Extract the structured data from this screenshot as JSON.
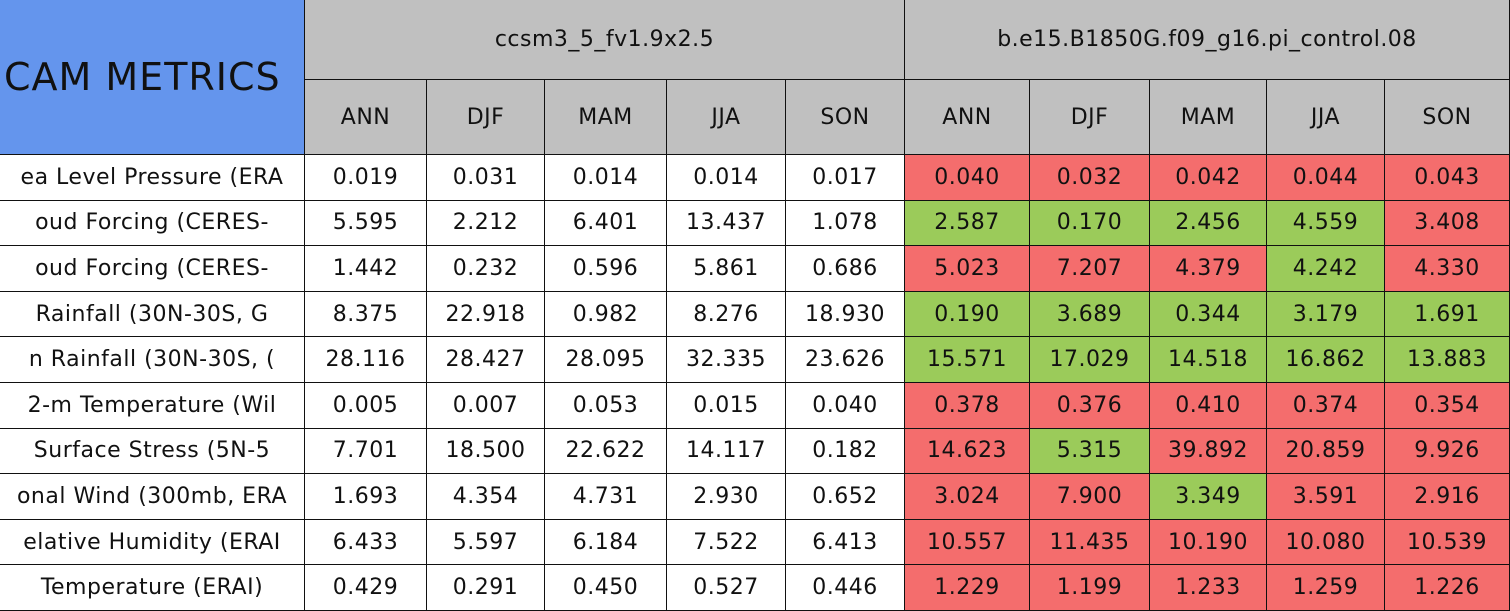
{
  "corner_title": "CAM METRICS",
  "groups": [
    "ccsm3_5_fv1.9x2.5",
    "b.e15.B1850G.f09_g16.pi_control.08"
  ],
  "seasons": [
    "ANN",
    "DJF",
    "MAM",
    "JJA",
    "SON"
  ],
  "rows": [
    {
      "label": "ea Level Pressure (ERA",
      "values": [
        "0.019",
        "0.031",
        "0.014",
        "0.014",
        "0.017",
        "0.040",
        "0.032",
        "0.042",
        "0.044",
        "0.043"
      ],
      "colors": [
        "#ffffff",
        "#ffffff",
        "#ffffff",
        "#ffffff",
        "#ffffff",
        "#f46d6d",
        "#f46d6d",
        "#f46d6d",
        "#f46d6d",
        "#f46d6d"
      ]
    },
    {
      "label": "oud Forcing (CERES-",
      "values": [
        "5.595",
        "2.212",
        "6.401",
        "13.437",
        "1.078",
        "2.587",
        "0.170",
        "2.456",
        "4.559",
        "3.408"
      ],
      "colors": [
        "#ffffff",
        "#ffffff",
        "#ffffff",
        "#ffffff",
        "#ffffff",
        "#9bcb5a",
        "#9bcb5a",
        "#9bcb5a",
        "#9bcb5a",
        "#f46d6d"
      ]
    },
    {
      "label": "oud Forcing (CERES-",
      "values": [
        "1.442",
        "0.232",
        "0.596",
        "5.861",
        "0.686",
        "5.023",
        "7.207",
        "4.379",
        "4.242",
        "4.330"
      ],
      "colors": [
        "#ffffff",
        "#ffffff",
        "#ffffff",
        "#ffffff",
        "#ffffff",
        "#f46d6d",
        "#f46d6d",
        "#f46d6d",
        "#9bcb5a",
        "#f46d6d"
      ]
    },
    {
      "label": "Rainfall (30N-30S, G",
      "values": [
        "8.375",
        "22.918",
        "0.982",
        "8.276",
        "18.930",
        "0.190",
        "3.689",
        "0.344",
        "3.179",
        "1.691"
      ],
      "colors": [
        "#ffffff",
        "#ffffff",
        "#ffffff",
        "#ffffff",
        "#ffffff",
        "#9bcb5a",
        "#9bcb5a",
        "#9bcb5a",
        "#9bcb5a",
        "#9bcb5a"
      ]
    },
    {
      "label": "n Rainfall (30N-30S, (",
      "values": [
        "28.116",
        "28.427",
        "28.095",
        "32.335",
        "23.626",
        "15.571",
        "17.029",
        "14.518",
        "16.862",
        "13.883"
      ],
      "colors": [
        "#ffffff",
        "#ffffff",
        "#ffffff",
        "#ffffff",
        "#ffffff",
        "#9bcb5a",
        "#9bcb5a",
        "#9bcb5a",
        "#9bcb5a",
        "#9bcb5a"
      ]
    },
    {
      "label": "2-m Temperature (Wil",
      "values": [
        "0.005",
        "0.007",
        "0.053",
        "0.015",
        "0.040",
        "0.378",
        "0.376",
        "0.410",
        "0.374",
        "0.354"
      ],
      "colors": [
        "#ffffff",
        "#ffffff",
        "#ffffff",
        "#ffffff",
        "#ffffff",
        "#f46d6d",
        "#f46d6d",
        "#f46d6d",
        "#f46d6d",
        "#f46d6d"
      ]
    },
    {
      "label": "Surface Stress (5N-5",
      "values": [
        "7.701",
        "18.500",
        "22.622",
        "14.117",
        "0.182",
        "14.623",
        "5.315",
        "39.892",
        "20.859",
        "9.926"
      ],
      "colors": [
        "#ffffff",
        "#ffffff",
        "#ffffff",
        "#ffffff",
        "#ffffff",
        "#f46d6d",
        "#9bcb5a",
        "#f46d6d",
        "#f46d6d",
        "#f46d6d"
      ]
    },
    {
      "label": "onal Wind (300mb, ERA",
      "values": [
        "1.693",
        "4.354",
        "4.731",
        "2.930",
        "0.652",
        "3.024",
        "7.900",
        "3.349",
        "3.591",
        "2.916"
      ],
      "colors": [
        "#ffffff",
        "#ffffff",
        "#ffffff",
        "#ffffff",
        "#ffffff",
        "#f46d6d",
        "#f46d6d",
        "#9bcb5a",
        "#f46d6d",
        "#f46d6d"
      ]
    },
    {
      "label": "elative Humidity (ERAI",
      "values": [
        "6.433",
        "5.597",
        "6.184",
        "7.522",
        "6.413",
        "10.557",
        "11.435",
        "10.190",
        "10.080",
        "10.539"
      ],
      "colors": [
        "#ffffff",
        "#ffffff",
        "#ffffff",
        "#ffffff",
        "#ffffff",
        "#f46d6d",
        "#f46d6d",
        "#f46d6d",
        "#f46d6d",
        "#f46d6d"
      ]
    },
    {
      "label": "Temperature (ERAI)",
      "values": [
        "0.429",
        "0.291",
        "0.450",
        "0.527",
        "0.446",
        "1.229",
        "1.199",
        "1.233",
        "1.259",
        "1.226"
      ],
      "colors": [
        "#ffffff",
        "#ffffff",
        "#ffffff",
        "#ffffff",
        "#ffffff",
        "#f46d6d",
        "#f46d6d",
        "#f46d6d",
        "#f46d6d",
        "#f46d6d"
      ]
    }
  ]
}
